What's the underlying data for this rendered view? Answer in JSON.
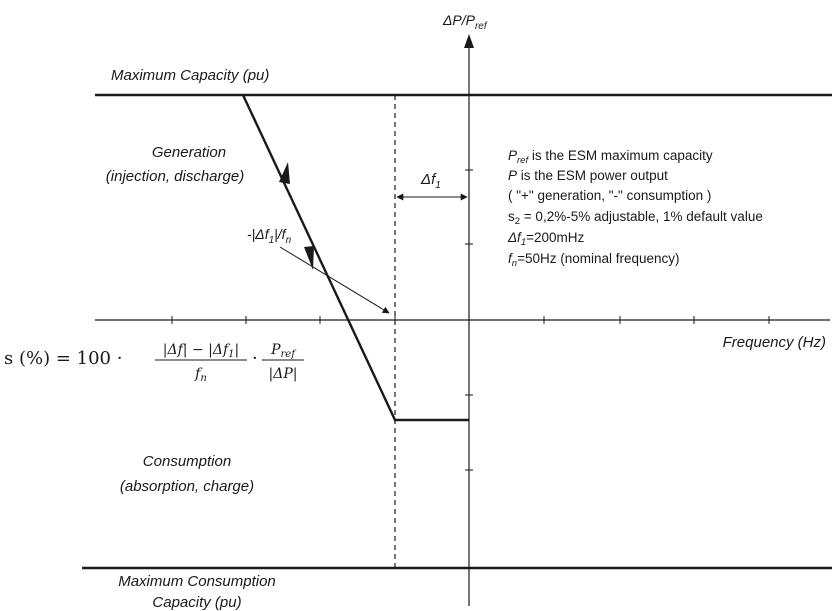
{
  "axes": {
    "y_label_main": "ΔP/P",
    "y_label_sub": "ref",
    "x_label": "Frequency (Hz)"
  },
  "regions": {
    "max_capacity": "Maximum Capacity (pu)",
    "generation_line1": "Generation",
    "generation_line2": "(injection, discharge)",
    "consumption_line1": "Consumption",
    "consumption_line2": "(absorption, charge)",
    "max_consumption_line1": "Maximum Consumption",
    "max_consumption_line2": "Capacity (pu)"
  },
  "annotations": {
    "delta_f1": "Δf",
    "delta_f1_sub": "1",
    "slope_prefix": "-|Δf",
    "slope_sub": "1",
    "slope_suffix": "|/f",
    "slope_sub2": "n"
  },
  "notes": {
    "pref_sym": "P",
    "pref_sub": "ref",
    "pref_text": " is the ESM maximum capacity",
    "p_sym": "P",
    "p_text": " is the ESM power output",
    "sign_text": "( \"+\" generation, \"-\" consumption )",
    "s2_sym": "s",
    "s2_sub": "2",
    "s2_text": " = 0,2%-5% adjustable, 1% default value",
    "df1_sym": "Δf",
    "df1_sub": "1",
    "df1_text": "=200mHz",
    "fn_sym": "f",
    "fn_sub": "n",
    "fn_text": "=50Hz (nominal frequency)"
  },
  "formula": {
    "lhs": "s (%) = 100 ·",
    "num": "|Δf| − |Δf",
    "num_sub": "1",
    "num_end": "|",
    "den_sym": "f",
    "den_sub": "n",
    "mult": "·",
    "num2": "P",
    "num2_sub": "ref",
    "den2": "|ΔP|"
  }
}
